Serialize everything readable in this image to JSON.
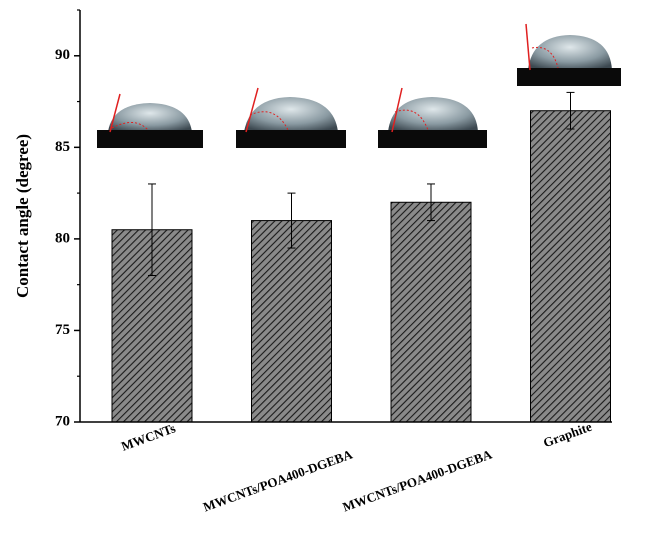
{
  "chart_data": {
    "type": "bar",
    "y_label": "Contact angle (degree)",
    "categories": [
      "MWCNTs",
      "MWCNTs/POA400-DGEBA",
      "MWCNTs/POA400-DGEBA",
      "Graphite"
    ],
    "values": [
      80.5,
      81,
      82,
      87
    ],
    "errors": [
      2.5,
      1.5,
      1,
      1
    ],
    "color": "#8a8a8a",
    "hatch": true,
    "ylim": [
      70,
      92.5
    ],
    "yticks": [
      70,
      75,
      80,
      85,
      90
    ],
    "yminorticks": [
      72.5,
      77.5,
      82.5,
      87.5,
      92.5
    ]
  }
}
